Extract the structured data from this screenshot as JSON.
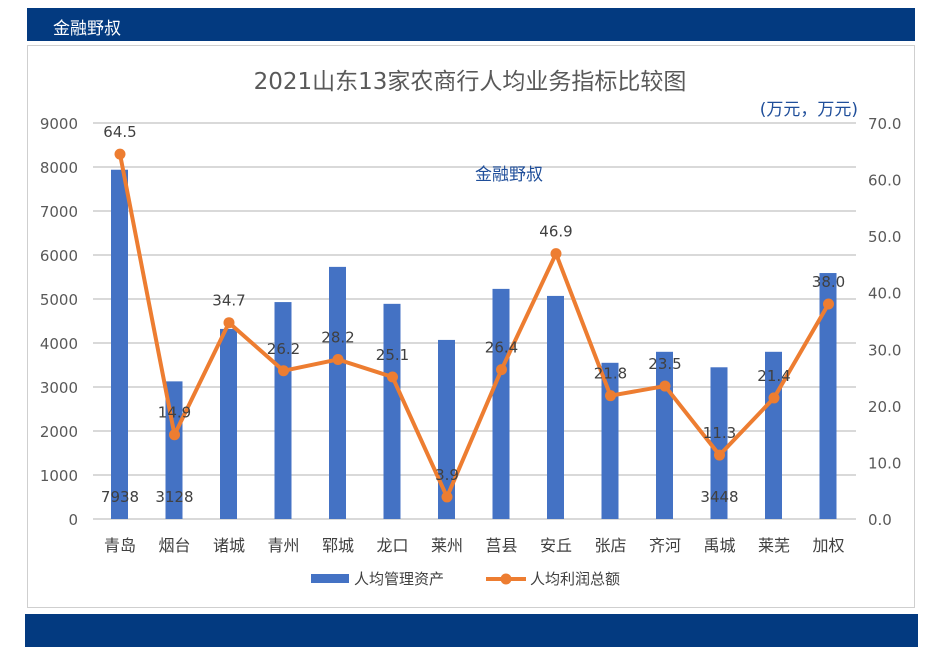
{
  "header": {
    "brand": "金融野叔"
  },
  "chart_data": {
    "type": "bar+line",
    "title": "2021山东13家农商行人均业务指标比较图",
    "units_note": "(万元，万元)",
    "watermark": "金融野叔",
    "categories": [
      "青岛",
      "烟台",
      "诸城",
      "青州",
      "郓城",
      "龙口",
      "莱州",
      "莒县",
      "安丘",
      "张店",
      "齐河",
      "禹城",
      "莱芜",
      "加权"
    ],
    "series": [
      {
        "name": "人均管理资产",
        "type": "bar",
        "axis": "left",
        "color": "#4472c4",
        "values": [
          7938,
          3128,
          4320,
          4930,
          5730,
          4890,
          4070,
          5230,
          5070,
          3550,
          3800,
          3448,
          3800,
          5590
        ],
        "labels": [
          "7938",
          "3128",
          "",
          "",
          "",
          "",
          "",
          "",
          "",
          "",
          "",
          "3448",
          "",
          ""
        ]
      },
      {
        "name": "人均利润总额",
        "type": "line",
        "axis": "right",
        "color": "#ed7d31",
        "values": [
          64.5,
          14.9,
          34.7,
          26.2,
          28.2,
          25.1,
          3.9,
          26.4,
          46.9,
          21.8,
          23.5,
          11.3,
          21.4,
          38.0
        ],
        "labels": [
          "64.5",
          "14.9",
          "34.7",
          "26.2",
          "28.2",
          "25.1",
          "3.9",
          "26.4",
          "46.9",
          "21.8",
          "23.5",
          "11.3",
          "21.4",
          "38.0"
        ]
      }
    ],
    "y_left": {
      "min": 0,
      "max": 9000,
      "ticks": [
        "0",
        "1000",
        "2000",
        "3000",
        "4000",
        "5000",
        "6000",
        "7000",
        "8000",
        "9000"
      ]
    },
    "y_right": {
      "min": 0,
      "max": 70,
      "ticks": [
        "0.0",
        "10.0",
        "20.0",
        "30.0",
        "40.0",
        "50.0",
        "60.0",
        "70.0"
      ]
    },
    "grid": true,
    "legend": "bottom"
  }
}
